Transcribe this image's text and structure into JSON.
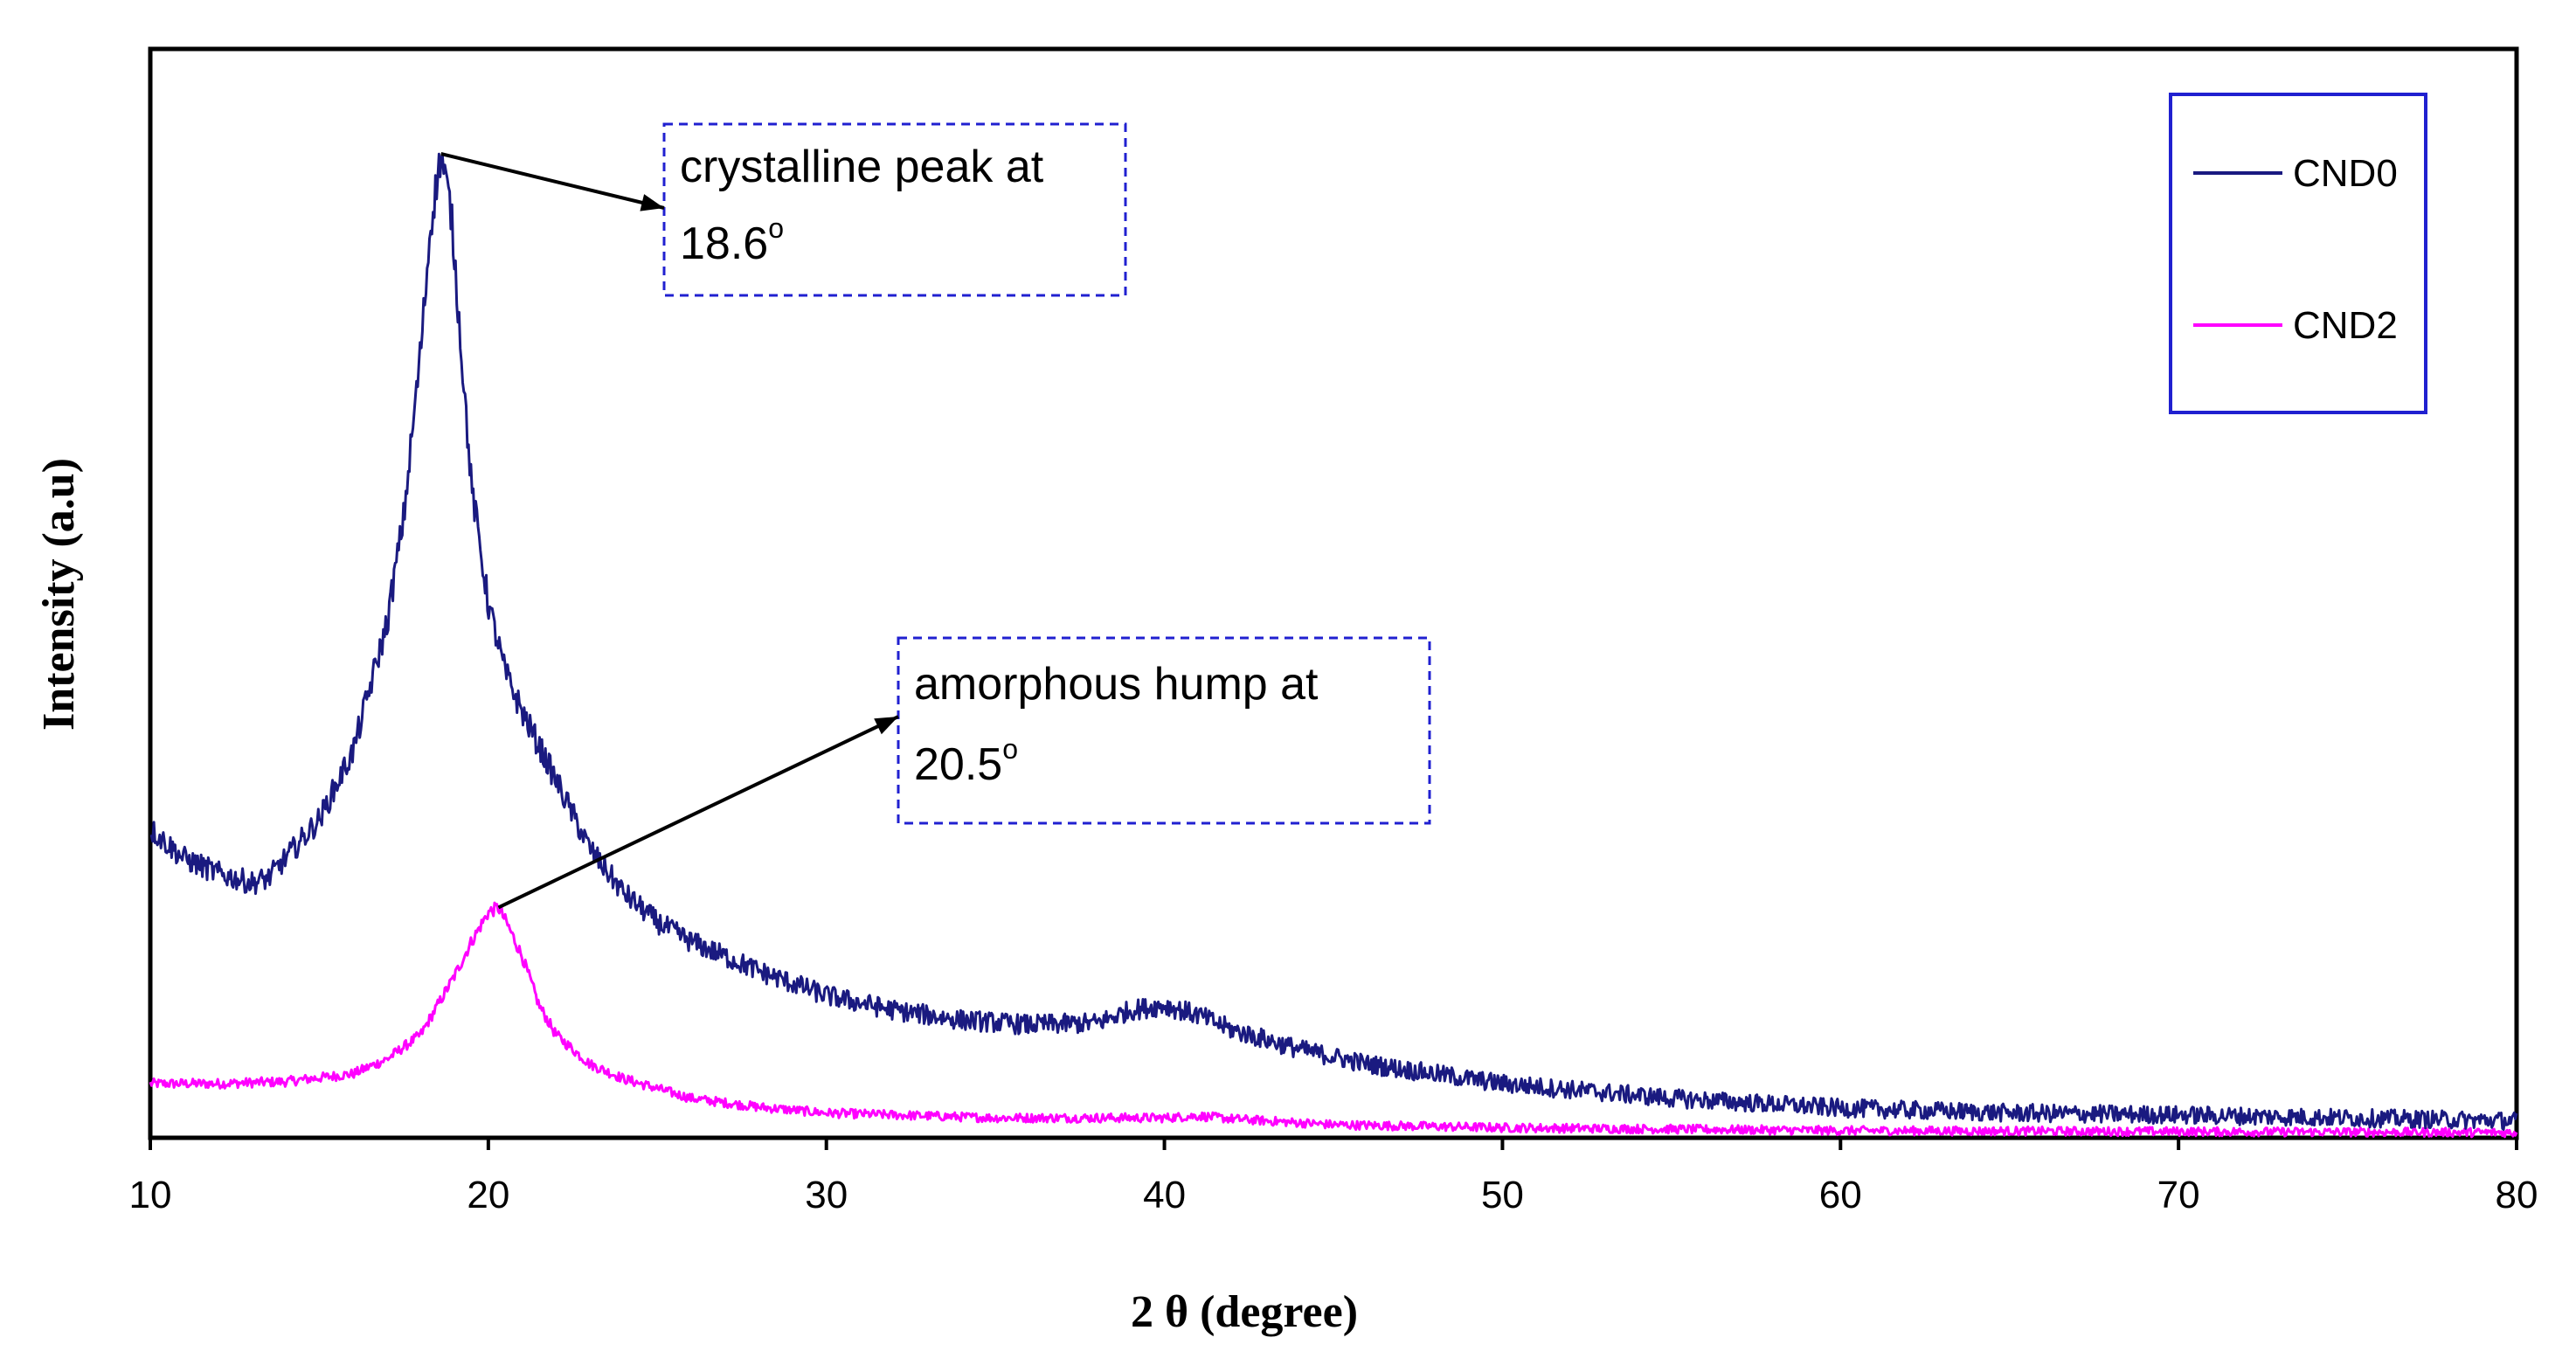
{
  "chart_data": {
    "type": "line",
    "xlabel": "2 θ (degree)",
    "ylabel": "Intensity (a.u)",
    "xlim": [
      10,
      80
    ],
    "ylim": [
      0,
      100
    ],
    "y_ticks_shown": false,
    "x_ticks": [
      10,
      20,
      30,
      40,
      50,
      60,
      70,
      80
    ],
    "x_tick_labels": [
      "10",
      "20",
      "30",
      "40",
      "50",
      "60",
      "70",
      "80"
    ],
    "grid": false,
    "legend_position": "top-right",
    "series": [
      {
        "name": "CND0",
        "color": "#1a1a80",
        "x": [
          10,
          11,
          12,
          13,
          13.5,
          14,
          15,
          16,
          17,
          17.5,
          18,
          18.3,
          18.6,
          18.9,
          19.2,
          19.5,
          20,
          20.5,
          21,
          22,
          23,
          24,
          25,
          26,
          28,
          30,
          32,
          34,
          36,
          38,
          39,
          40,
          41,
          42,
          44,
          46,
          50,
          55,
          60,
          65,
          70,
          75,
          80
        ],
        "y": [
          31,
          28,
          26.5,
          25.5,
          26,
          28,
          32,
          39,
          52,
          63,
          80,
          93,
          100,
          94,
          80,
          66,
          54,
          47,
          43,
          36,
          29,
          24.5,
          21.5,
          19.5,
          16.5,
          14,
          12.5,
          11.5,
          11,
          11.2,
          12.5,
          13,
          12,
          10.5,
          8.5,
          7,
          5,
          3.5,
          2.5,
          2,
          1.8,
          1.5,
          1.2
        ]
      },
      {
        "name": "CND2",
        "color": "#ff00ff",
        "x": [
          10,
          12,
          14,
          16,
          17,
          18,
          19,
          19.5,
          20,
          20.3,
          20.6,
          21,
          21.5,
          22,
          23,
          24,
          26,
          28,
          30,
          35,
          40,
          41,
          42,
          45,
          50,
          60,
          70,
          80
        ],
        "y": [
          5,
          5,
          5.2,
          6,
          7.5,
          10,
          16,
          19.5,
          22.5,
          23,
          21,
          18,
          13,
          10,
          7,
          5.5,
          3.5,
          2.6,
          2,
          1.5,
          1.5,
          1.7,
          1.4,
          0.8,
          0.5,
          0.2,
          0.1,
          0
        ]
      }
    ],
    "annotations": [
      {
        "line1": "crystalline peak at",
        "line2": "18.6",
        "sup": "o",
        "target_x": 18.6,
        "target_y": 100
      },
      {
        "line1": "amorphous hump at",
        "line2": "20.5",
        "sup": "o",
        "target_x": 20.3,
        "target_y": 23
      }
    ]
  },
  "colors": {
    "annotation_border": "#2020d0",
    "legend_border": "#2020d0",
    "frame": "#000000"
  }
}
